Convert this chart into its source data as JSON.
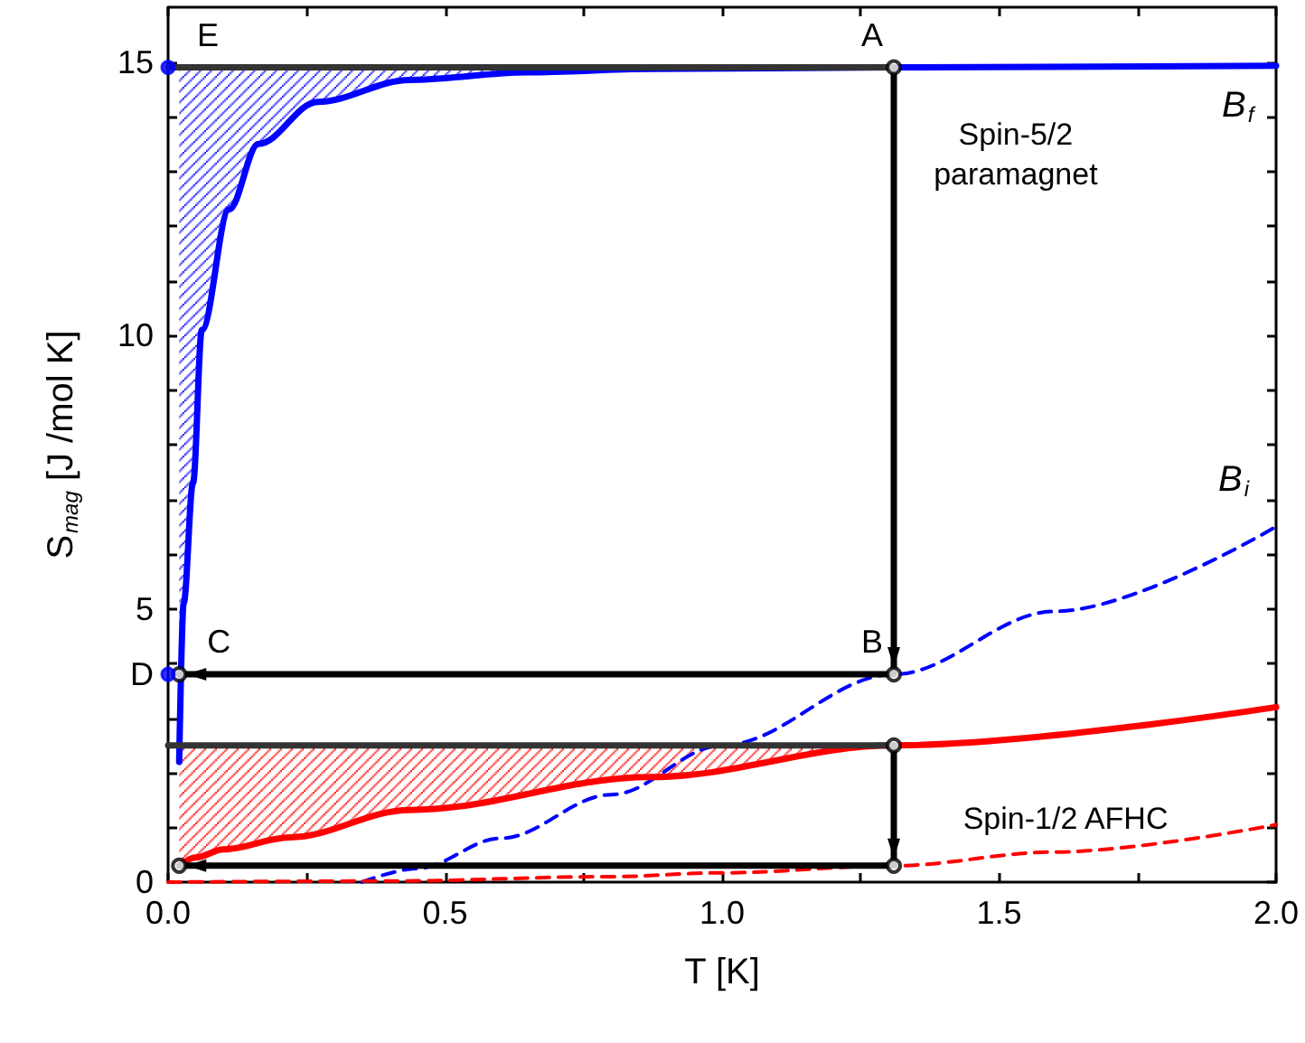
{
  "chart_data": {
    "type": "line",
    "xlabel": "T [K]",
    "ylabel": "S$_{mag}$ [J /mol K]",
    "xlim": [
      0,
      2.0
    ],
    "ylim": [
      0,
      16
    ],
    "xticks": [
      {
        "value": 0,
        "label": "0.0"
      },
      {
        "value": 0.25,
        "label": null
      },
      {
        "value": 0.5,
        "label": "0.5"
      },
      {
        "value": 0.75,
        "label": null
      },
      {
        "value": 1.0,
        "label": "1.0"
      },
      {
        "value": 1.25,
        "label": null
      },
      {
        "value": 1.5,
        "label": "1.5"
      },
      {
        "value": 1.75,
        "label": null
      },
      {
        "value": 2.0,
        "label": "2.0"
      }
    ],
    "yticks": [
      0,
      {
        "value": 1,
        "label": null
      },
      {
        "value": 2,
        "label": null
      },
      {
        "value": 3,
        "label": null
      },
      {
        "value": 4,
        "label": null
      },
      5,
      {
        "value": 6,
        "label": null
      },
      {
        "value": 7,
        "label": null
      },
      {
        "value": 8,
        "label": null
      },
      {
        "value": 9,
        "label": null
      },
      10,
      {
        "value": 11,
        "label": null
      },
      {
        "value": 12,
        "label": null
      },
      {
        "value": 13,
        "label": null
      },
      {
        "value": 14,
        "label": null
      },
      15
    ],
    "grid": false,
    "legend": false,
    "series": [
      {
        "name": "B$_{f}$",
        "color": "#0000ff",
        "line_style": "solid",
        "marker": "none",
        "x": [
          0.02,
          0.028,
          0.045,
          0.061,
          0.11,
          0.163,
          0.27,
          0.436,
          0.65,
          0.87,
          1.31,
          2.0
        ],
        "values": [
          2.2,
          5.1,
          7.3,
          10.1,
          12.3,
          13.5,
          14.27,
          14.67,
          14.81,
          14.87,
          14.9,
          14.93
        ],
        "lower": [
          2.2,
          5.1,
          7.3,
          10.1,
          12.3,
          13.5,
          14.27,
          14.67,
          14.81,
          14.87,
          null,
          null
        ],
        "upper": [
          14.9,
          14.9,
          14.9,
          14.9,
          14.9,
          14.9,
          14.9,
          14.9,
          14.9,
          14.9,
          null,
          null
        ]
      },
      {
        "name": "B$_{i}$",
        "color": "#0000ff",
        "line_style": "dashed",
        "marker": "none",
        "x": [
          0.35,
          0.45,
          0.6,
          0.8,
          1.0,
          1.31,
          1.6,
          2.0
        ],
        "values": [
          0,
          0.25,
          0.8,
          1.6,
          2.5,
          3.8,
          4.95,
          6.5
        ]
      },
      {
        "color": "#ff0000",
        "line_style": "solid",
        "marker": "none",
        "x": [
          0.02,
          0.05,
          0.1,
          0.22,
          0.436,
          0.87,
          1.31,
          2.0
        ],
        "values": [
          0.3,
          0.45,
          0.6,
          0.82,
          1.32,
          1.92,
          2.5,
          3.2
        ],
        "lower": [
          0.3,
          0.45,
          0.6,
          0.82,
          1.32,
          1.92,
          2.5,
          null
        ],
        "upper": [
          2.5,
          2.5,
          2.5,
          2.5,
          2.5,
          2.5,
          2.5,
          null
        ]
      },
      {
        "color": "#ff0000",
        "line_style": "dashed",
        "marker": "none",
        "x": [
          0,
          0.4,
          0.8,
          1.0,
          1.31,
          1.6,
          2.0
        ],
        "values": [
          0,
          0.02,
          0.1,
          0.17,
          0.3,
          0.55,
          1.05
        ]
      },
      {
        "type": "line",
        "color": "#333333",
        "line_style": "solid",
        "marker": "none",
        "x": [
          0,
          1.31
        ],
        "values": [
          14.9,
          14.9
        ]
      },
      {
        "type": "line",
        "color": "#333333",
        "line_style": "solid",
        "marker": "none",
        "x": [
          0,
          1.31
        ],
        "values": [
          2.5,
          2.5
        ]
      },
      {
        "color": "#000000",
        "line_style": "solid",
        "marker": "none",
        "x": [
          1.31,
          1.31
        ],
        "values": [
          14.9,
          3.8
        ]
      },
      {
        "color": "#000000",
        "line_style": "solid",
        "marker": "none",
        "x": [
          1.31,
          0.02
        ],
        "values": [
          3.8,
          3.8
        ]
      },
      {
        "color": "#000000",
        "line_style": "solid",
        "marker": "none",
        "x": [
          1.31,
          1.31
        ],
        "values": [
          2.5,
          0.3
        ]
      },
      {
        "color": "#000000",
        "line_style": "solid",
        "marker": "none",
        "x": [
          1.31,
          0.02
        ],
        "values": [
          0.3,
          0.3
        ]
      },
      {
        "type": "scatter",
        "color": "#000000",
        "marker": "circle",
        "x": [
          1.31,
          1.31,
          0.02,
          1.31,
          1.31,
          0.02
        ],
        "values": [
          14.9,
          3.8,
          3.8,
          2.5,
          0.3,
          0.3
        ]
      },
      {
        "type": "scatter",
        "color": "#0000ff",
        "marker": "circle",
        "x": [
          0,
          0
        ],
        "values": [
          14.9,
          3.8
        ]
      }
    ],
    "annotations": [
      {
        "text": "A",
        "x": 1.31,
        "y": 14.9
      },
      {
        "text": "B",
        "x": 1.31,
        "y": 3.8
      },
      {
        "text": "C",
        "x": 0.02,
        "y": 3.8
      },
      {
        "text": "D",
        "x": 0,
        "y": 3.8
      },
      {
        "text": "E",
        "x": 0,
        "y": 14.9
      },
      "Spin-5/2\nparamagnet",
      "Spin-1/2 AFHC"
    ]
  }
}
